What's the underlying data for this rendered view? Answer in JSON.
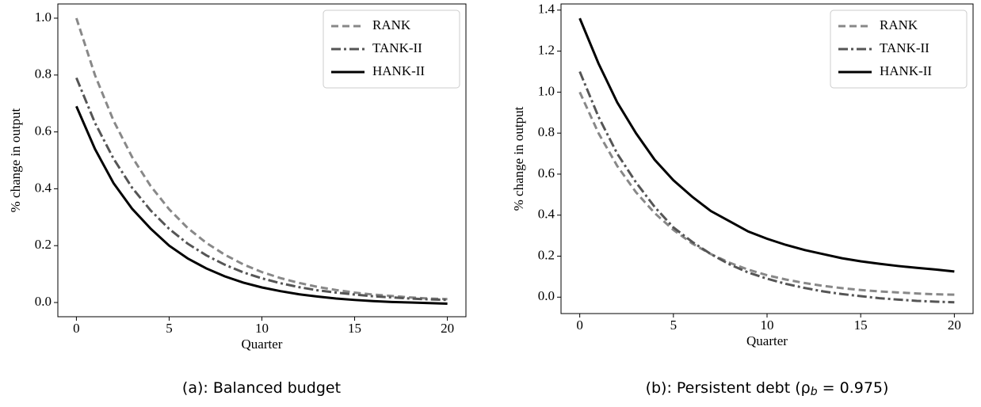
{
  "chart_data": [
    {
      "type": "line",
      "xlabel": "Quarter",
      "ylabel": "% change in output",
      "caption": "(a): Balanced budget",
      "x": [
        0,
        1,
        2,
        3,
        4,
        5,
        6,
        7,
        8,
        9,
        10,
        11,
        12,
        13,
        14,
        15,
        16,
        17,
        18,
        19,
        20
      ],
      "xlim": [
        -1,
        21
      ],
      "xticks": [
        0,
        5,
        10,
        15,
        20
      ],
      "ylim": [
        -0.05,
        1.05
      ],
      "yticks": [
        {
          "value": 0,
          "label": "0.0"
        },
        {
          "value": 0.2,
          "label": "0.2"
        },
        {
          "value": 0.4,
          "label": "0.4"
        },
        {
          "value": 0.6,
          "label": "0.6"
        },
        {
          "value": 0.8,
          "label": "0.8"
        },
        {
          "value": 1,
          "label": "1.0"
        }
      ],
      "legend": "upper right",
      "series": [
        {
          "name": "RANK",
          "color": "#888888",
          "dash": "dashed",
          "values": [
            1,
            0.8,
            0.64,
            0.512,
            0.41,
            0.328,
            0.262,
            0.21,
            0.168,
            0.134,
            0.107,
            0.086,
            0.069,
            0.055,
            0.044,
            0.035,
            0.028,
            0.023,
            0.018,
            0.014,
            0.012
          ]
        },
        {
          "name": "TANK-II",
          "color": "#555555",
          "dash": "dashdot",
          "values": [
            0.79,
            0.632,
            0.506,
            0.404,
            0.324,
            0.259,
            0.207,
            0.166,
            0.133,
            0.106,
            0.085,
            0.068,
            0.054,
            0.043,
            0.035,
            0.028,
            0.022,
            0.018,
            0.014,
            0.011,
            0.009
          ]
        },
        {
          "name": "HANK-II",
          "color": "#000000",
          "dash": "solid",
          "values": [
            0.69,
            0.54,
            0.42,
            0.33,
            0.26,
            0.2,
            0.155,
            0.12,
            0.092,
            0.07,
            0.053,
            0.04,
            0.029,
            0.021,
            0.014,
            0.009,
            0.005,
            0.002,
            0,
            -0.002,
            -0.004
          ]
        }
      ]
    },
    {
      "type": "line",
      "xlabel": "Quarter",
      "ylabel": "% change in output",
      "caption": "(b): Persistent debt (ρ",
      "caption_subscript": "b",
      "caption_end": " = 0.975)",
      "x": [
        0,
        1,
        2,
        3,
        4,
        5,
        6,
        7,
        8,
        9,
        10,
        11,
        12,
        13,
        14,
        15,
        16,
        17,
        18,
        19,
        20
      ],
      "xlim": [
        -1,
        21
      ],
      "xticks": [
        0,
        5,
        10,
        15,
        20
      ],
      "ylim": [
        -0.08,
        1.43
      ],
      "yticks": [
        {
          "value": 0,
          "label": "0.0"
        },
        {
          "value": 0.2,
          "label": "0.2"
        },
        {
          "value": 0.4,
          "label": "0.4"
        },
        {
          "value": 0.6,
          "label": "0.6"
        },
        {
          "value": 0.8,
          "label": "0.8"
        },
        {
          "value": 1,
          "label": "1.0"
        },
        {
          "value": 1.2,
          "label": "1.2"
        },
        {
          "value": 1.4,
          "label": "1.4"
        }
      ],
      "legend": "upper right",
      "series": [
        {
          "name": "RANK",
          "color": "#888888",
          "dash": "dashed",
          "values": [
            1,
            0.8,
            0.64,
            0.512,
            0.41,
            0.328,
            0.262,
            0.21,
            0.168,
            0.134,
            0.107,
            0.086,
            0.069,
            0.055,
            0.044,
            0.035,
            0.028,
            0.023,
            0.018,
            0.014,
            0.012
          ]
        },
        {
          "name": "TANK-II",
          "color": "#555555",
          "dash": "dashdot",
          "values": [
            1.1,
            0.88,
            0.7,
            0.56,
            0.44,
            0.34,
            0.27,
            0.21,
            0.16,
            0.12,
            0.09,
            0.065,
            0.045,
            0.028,
            0.015,
            0.005,
            -0.005,
            -0.012,
            -0.018,
            -0.022,
            -0.025
          ]
        },
        {
          "name": "HANK-II",
          "color": "#000000",
          "dash": "solid",
          "values": [
            1.36,
            1.14,
            0.95,
            0.8,
            0.67,
            0.57,
            0.49,
            0.42,
            0.37,
            0.32,
            0.285,
            0.255,
            0.23,
            0.21,
            0.19,
            0.175,
            0.163,
            0.152,
            0.143,
            0.135,
            0.125
          ]
        }
      ]
    }
  ]
}
